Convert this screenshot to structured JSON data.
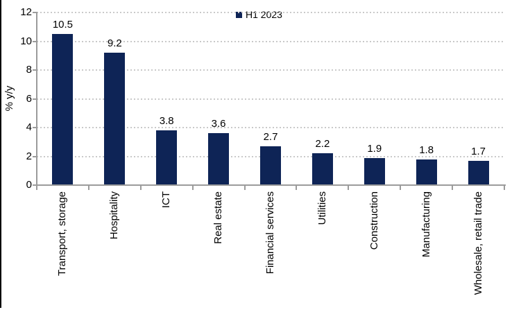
{
  "chart_data": {
    "type": "bar",
    "title": "",
    "categories": [
      "Transport, storage",
      "Hospitality",
      "ICT",
      "Real estate",
      "Financial services",
      "Utilities",
      "Construction",
      "Manufacturing",
      "Wholesale, retail trade"
    ],
    "series": [
      {
        "name": "H1 2023",
        "values": [
          10.5,
          9.2,
          3.8,
          3.6,
          2.7,
          2.2,
          1.9,
          1.8,
          1.7
        ]
      }
    ],
    "data_labels": [
      "10.5",
      "9.2",
      "3.8",
      "3.6",
      "2.7",
      "2.2",
      "1.9",
      "1.8",
      "1.7"
    ],
    "xlabel": "",
    "ylabel": "% y/y",
    "ylim": [
      0,
      12
    ],
    "yticks": [
      "0",
      "2",
      "4",
      "6",
      "8",
      "10",
      "12"
    ],
    "grid": "horizontal-dotted",
    "legend_position": "top-center",
    "colors": {
      "bar": "#0e2456",
      "axis": "#9b9b9b",
      "gridline": "#c9c9c9",
      "text": "#000000",
      "background": "#ffffff",
      "left_border": "#000000"
    }
  },
  "legend": {
    "label": "H1 2023"
  }
}
